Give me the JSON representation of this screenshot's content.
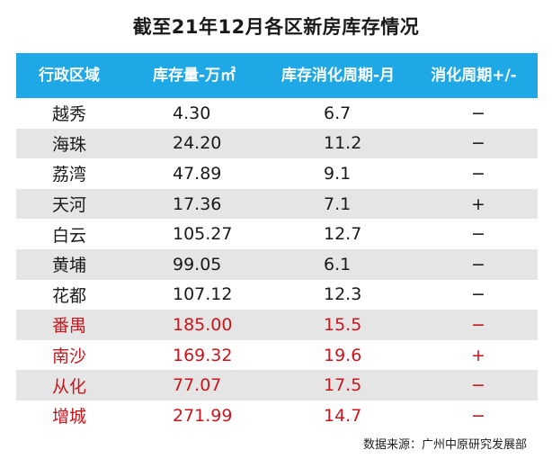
{
  "title": "截至21年12月各区新房库存情况",
  "table": {
    "headers": [
      "行政区域",
      "库存量-万㎡",
      "库存消化周期-月",
      "消化周期+/-"
    ],
    "rows": [
      {
        "district": "越秀",
        "stock": "4.30",
        "cycle": "6.7",
        "change": "−",
        "highlight": false
      },
      {
        "district": "海珠",
        "stock": "24.20",
        "cycle": "11.2",
        "change": "−",
        "highlight": false
      },
      {
        "district": "荔湾",
        "stock": "47.89",
        "cycle": "9.1",
        "change": "−",
        "highlight": false
      },
      {
        "district": "天河",
        "stock": "17.36",
        "cycle": "7.1",
        "change": "+",
        "highlight": false
      },
      {
        "district": "白云",
        "stock": "105.27",
        "cycle": "12.7",
        "change": "−",
        "highlight": false
      },
      {
        "district": "黄埔",
        "stock": "99.05",
        "cycle": "6.1",
        "change": "−",
        "highlight": false
      },
      {
        "district": "花都",
        "stock": "107.12",
        "cycle": "12.3",
        "change": "−",
        "highlight": false
      },
      {
        "district": "番禺",
        "stock": "185.00",
        "cycle": "15.5",
        "change": "−",
        "highlight": true
      },
      {
        "district": "南沙",
        "stock": "169.32",
        "cycle": "19.6",
        "change": "+",
        "highlight": true
      },
      {
        "district": "从化",
        "stock": "77.07",
        "cycle": "17.5",
        "change": "−",
        "highlight": true
      },
      {
        "district": "增城",
        "stock": "271.99",
        "cycle": "14.7",
        "change": "−",
        "highlight": true
      }
    ]
  },
  "source": "数据来源：广州中原研究发展部",
  "colors": {
    "header_bg": "#1ea8e6",
    "highlight_text": "#c8161d",
    "stripe_bg": "#e5e5e5"
  }
}
